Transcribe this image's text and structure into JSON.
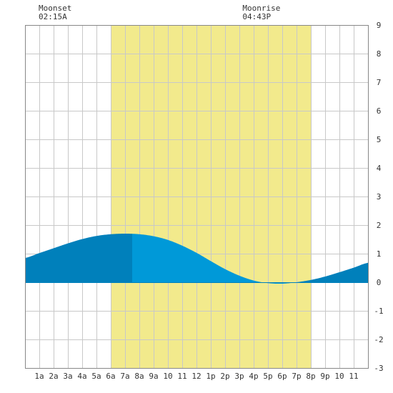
{
  "moon": {
    "moonset_label": "Moonset",
    "moonset_time": "02:15A",
    "moonrise_label": "Moonrise",
    "moonrise_time": "04:43P"
  },
  "chart_data": {
    "type": "area",
    "x_unit": "hour of day",
    "xlim": [
      0,
      24
    ],
    "ylim": [
      -3,
      9
    ],
    "y_ticks": [
      -3,
      -2,
      -1,
      0,
      1,
      2,
      3,
      4,
      5,
      6,
      7,
      8,
      9
    ],
    "x_ticks": [
      {
        "hour": 1,
        "label": "1a"
      },
      {
        "hour": 2,
        "label": "2a"
      },
      {
        "hour": 3,
        "label": "3a"
      },
      {
        "hour": 4,
        "label": "4a"
      },
      {
        "hour": 5,
        "label": "5a"
      },
      {
        "hour": 6,
        "label": "6a"
      },
      {
        "hour": 7,
        "label": "7a"
      },
      {
        "hour": 8,
        "label": "8a"
      },
      {
        "hour": 9,
        "label": "9a"
      },
      {
        "hour": 10,
        "label": "10"
      },
      {
        "hour": 11,
        "label": "11"
      },
      {
        "hour": 12,
        "label": "12"
      },
      {
        "hour": 13,
        "label": "1p"
      },
      {
        "hour": 14,
        "label": "2p"
      },
      {
        "hour": 15,
        "label": "3p"
      },
      {
        "hour": 16,
        "label": "4p"
      },
      {
        "hour": 17,
        "label": "5p"
      },
      {
        "hour": 18,
        "label": "6p"
      },
      {
        "hour": 19,
        "label": "7p"
      },
      {
        "hour": 20,
        "label": "8p"
      },
      {
        "hour": 21,
        "label": "9p"
      },
      {
        "hour": 22,
        "label": "10"
      },
      {
        "hour": 23,
        "label": "11"
      }
    ],
    "grid": true,
    "daylight": {
      "start_hour": 6.0,
      "end_hour": 20.0,
      "color": "#f2ea8c"
    },
    "moonset_hour": 2.25,
    "moonrise_hour": 16.72,
    "high_tide": {
      "hour": 7.5,
      "value": 1.7
    },
    "low_tide": {
      "hour": 18.75,
      "value": -0.05
    },
    "series": [
      {
        "x": [
          0,
          1,
          2,
          3,
          4,
          5,
          6,
          7,
          8,
          9,
          10,
          11,
          12,
          13,
          14,
          15,
          16,
          17,
          18,
          19,
          20,
          21,
          22,
          23,
          24
        ],
        "values": [
          0.85,
          1.02,
          1.19,
          1.36,
          1.51,
          1.62,
          1.68,
          1.7,
          1.68,
          1.61,
          1.48,
          1.28,
          1.03,
          0.74,
          0.46,
          0.23,
          0.06,
          -0.03,
          -0.05,
          0.0,
          0.08,
          0.2,
          0.35,
          0.51,
          0.68
        ]
      }
    ],
    "colors": {
      "fill_day": "#0099d8",
      "fill_night": "#0080bb",
      "grid": "#c8c8c8",
      "border": "#888888"
    }
  }
}
